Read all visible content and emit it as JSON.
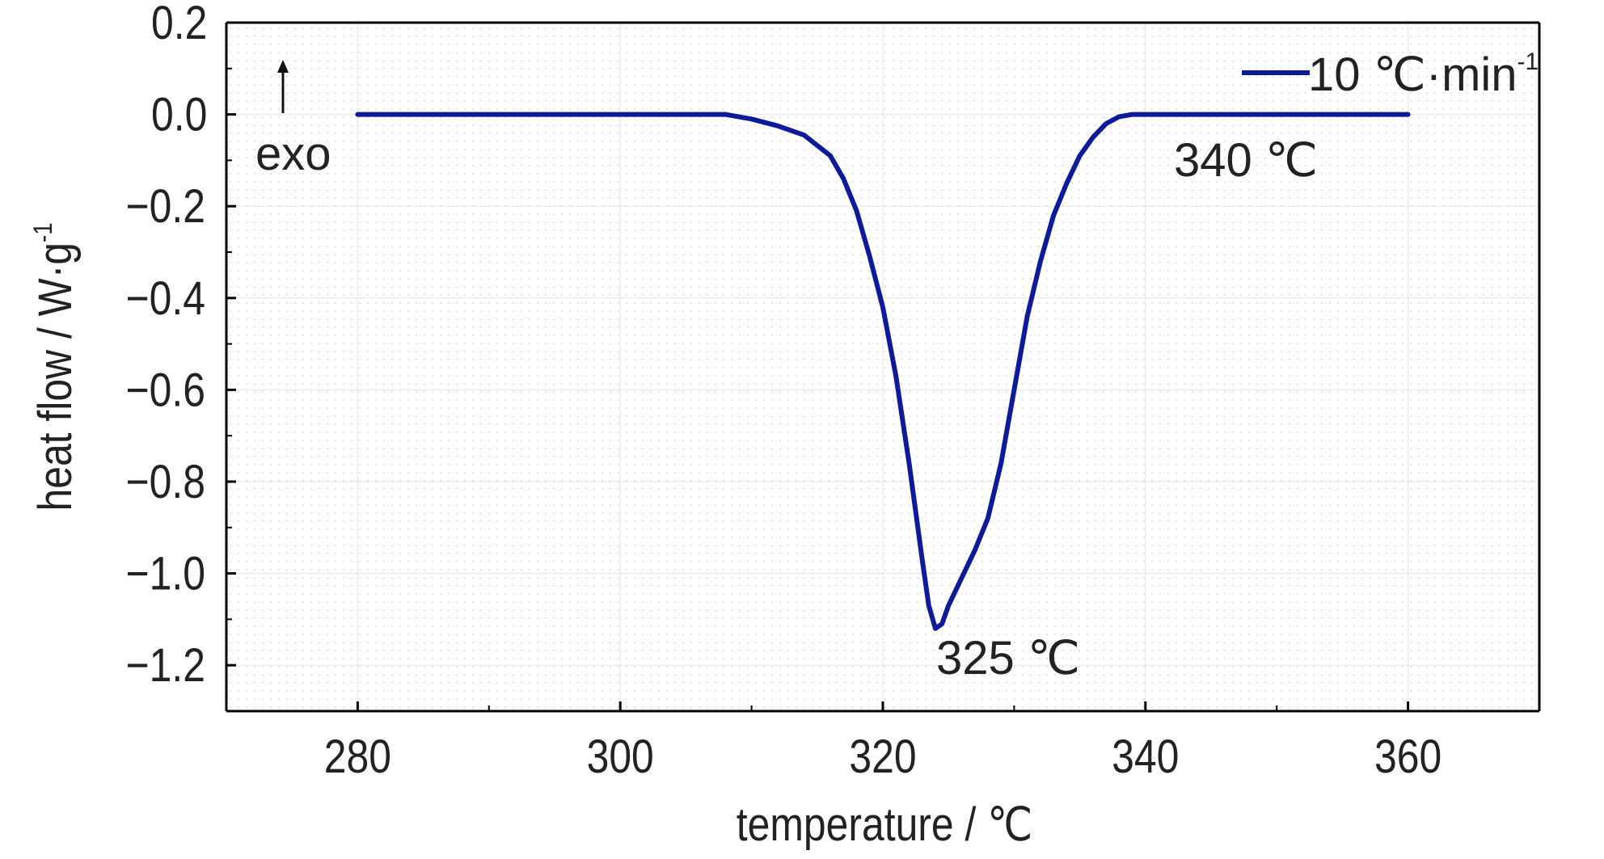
{
  "chart_data": {
    "type": "line",
    "xlabel": "temperature / ℃",
    "ylabel": "heat flow / W·g",
    "ylabel_superscript": "-1",
    "xlim": [
      270,
      370
    ],
    "ylim": [
      -1.3,
      0.2
    ],
    "xticks": [
      280,
      300,
      320,
      340,
      360
    ],
    "xtick_labels": [
      "280",
      "300",
      "320",
      "340",
      "360"
    ],
    "yticks": [
      0.2,
      0.0,
      -0.2,
      -0.4,
      -0.6,
      -0.8,
      -1.0,
      -1.2
    ],
    "ytick_labels": [
      "0.2",
      "0.0",
      "−0.2",
      "−0.4",
      "−0.6",
      "−0.8",
      "−1.0",
      "−1.2"
    ],
    "grid": true,
    "legend_position": "top-right",
    "series": [
      {
        "name": "10 ℃·min",
        "name_superscript": "-1",
        "color": "#0d1a9a",
        "x": [
          280,
          285,
          290,
          295,
          300,
          305,
          308,
          310,
          312,
          314,
          316,
          317,
          318,
          319,
          320,
          321,
          322,
          323,
          323.5,
          324,
          324.5,
          325,
          326,
          327,
          328,
          329,
          330,
          331,
          332,
          333,
          334,
          335,
          336,
          337,
          338,
          339,
          340,
          345,
          350,
          355,
          360
        ],
        "y": [
          0.0,
          0.0,
          0.0,
          0.0,
          0.0,
          0.0,
          0.0,
          -0.01,
          -0.025,
          -0.045,
          -0.09,
          -0.14,
          -0.21,
          -0.31,
          -0.42,
          -0.57,
          -0.76,
          -0.97,
          -1.07,
          -1.12,
          -1.11,
          -1.07,
          -1.01,
          -0.95,
          -0.88,
          -0.76,
          -0.6,
          -0.44,
          -0.32,
          -0.22,
          -0.15,
          -0.09,
          -0.05,
          -0.02,
          -0.005,
          0.0,
          0.0,
          0.0,
          0.0,
          0.0,
          0.0
        ]
      }
    ],
    "annotations": [
      {
        "text": "exo",
        "arrow": "up",
        "x": 273,
        "y": -0.08
      },
      {
        "text": "325 ℃",
        "x": 326.3,
        "y": -1.2
      },
      {
        "text": "340 ℃",
        "x": 341.2,
        "y": -0.09
      }
    ]
  }
}
